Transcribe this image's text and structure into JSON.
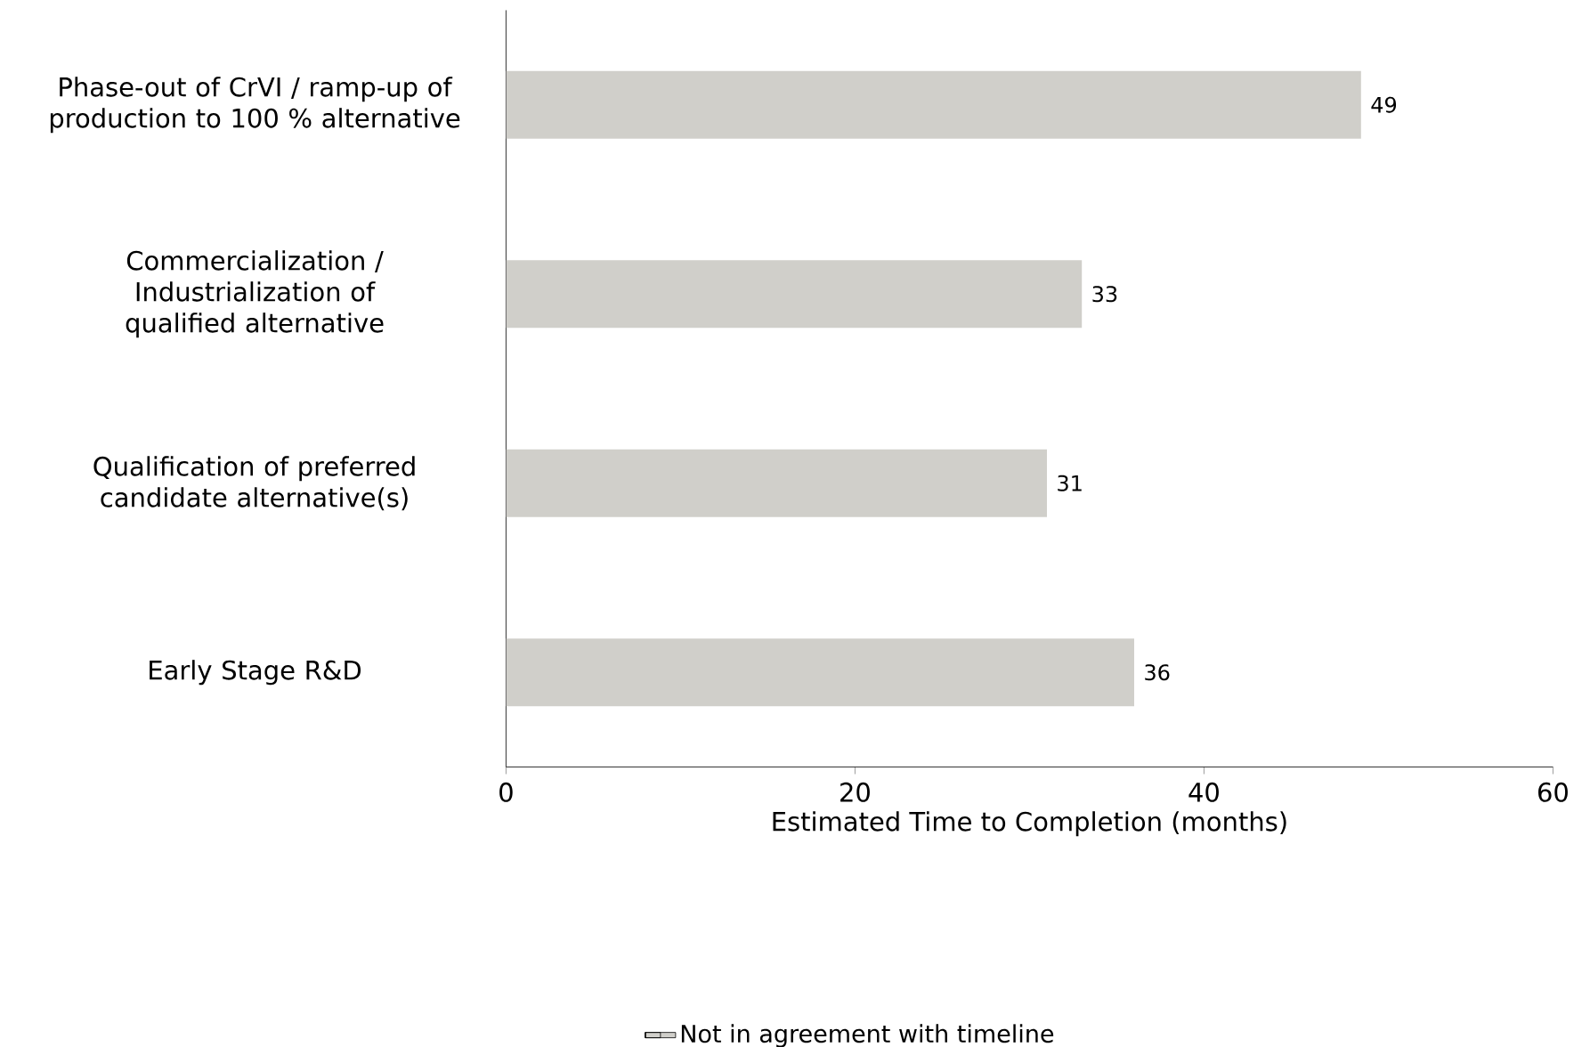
{
  "chart_data": {
    "type": "bar",
    "orientation": "horizontal",
    "xlabel": "Estimated Time to Completion (months)",
    "categories": [
      "Phase-out of CrVI / ramp-up of production to 100 % alternative",
      "Commercialization / Industrialization of qualified alternative",
      "Qualification of preferred candidate alternative(s)",
      "Early Stage R&D"
    ],
    "series": [
      {
        "name": "Not in agreement with timeline",
        "color": "#d0cfca",
        "values": [
          49,
          33,
          31,
          36
        ]
      }
    ],
    "xlim": [
      0,
      60
    ],
    "xticks": [
      0,
      20,
      40,
      60
    ],
    "data_labels": true,
    "grid": false,
    "legend": "bottom"
  }
}
